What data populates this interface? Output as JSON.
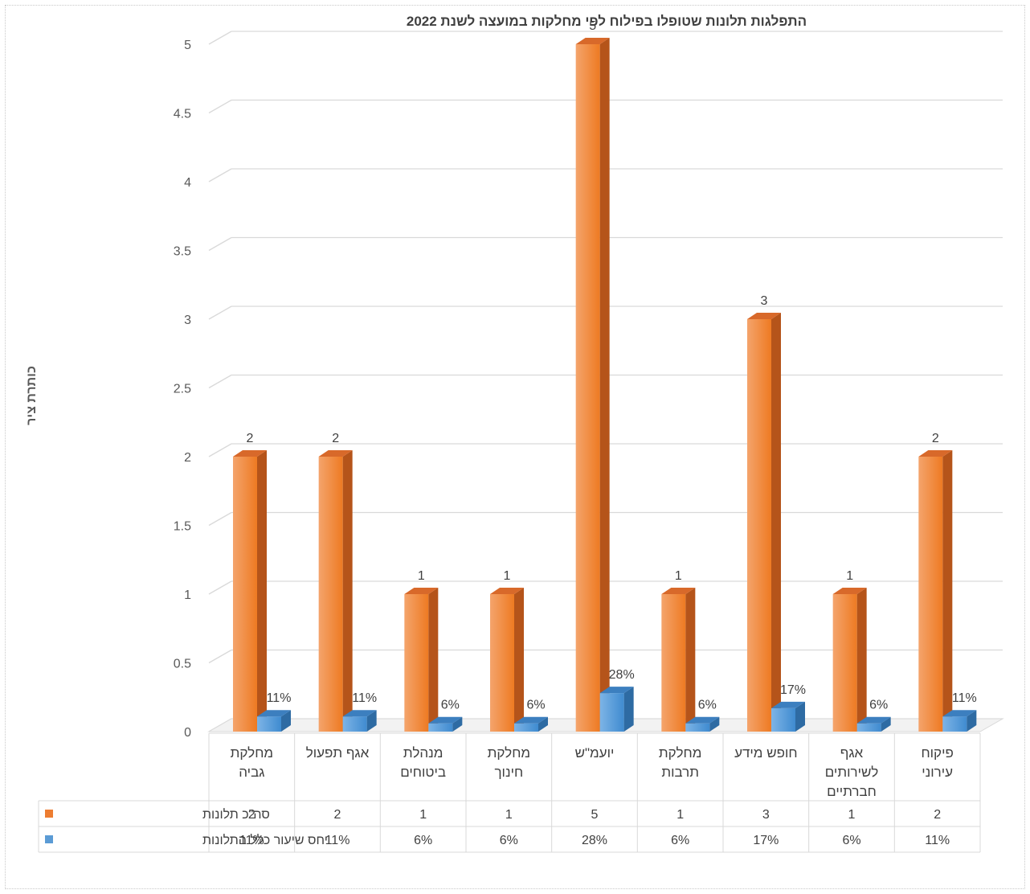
{
  "chart_data": {
    "type": "bar",
    "title": "התפלגות תלונות שטופלו בפילוח לפי מחלקות במועצה לשנת 2022",
    "ylabel": "כותרת ציר",
    "xlabel": "",
    "ylim": [
      0,
      5
    ],
    "yticks": [
      "0",
      "0.5",
      "1",
      "1.5",
      "2",
      "2.5",
      "3",
      "3.5",
      "4",
      "4.5",
      "5"
    ],
    "grid": true,
    "legend": "data-table",
    "categories": [
      [
        "מחלקת",
        "גביה"
      ],
      [
        "אגף תפעול"
      ],
      [
        "מנהלת",
        "ביטוחים"
      ],
      [
        "מחלקת",
        "חינוך"
      ],
      [
        "יועמ\"ש"
      ],
      [
        "מחלקת",
        "תרבות"
      ],
      [
        "חופש מידע"
      ],
      [
        "אגף",
        "לשירותים",
        "חברתיים"
      ],
      [
        "פיקוח",
        "עירוני"
      ]
    ],
    "series": [
      {
        "name": "סה\"כ תלונות",
        "color": "#ED7D31",
        "values": [
          2,
          2,
          1,
          1,
          5,
          1,
          3,
          1,
          2
        ],
        "labels": [
          "2",
          "2",
          "1",
          "1",
          "5",
          "1",
          "3",
          "1",
          "2"
        ]
      },
      {
        "name": "יחס שיעור כלל התלונות",
        "color": "#5B9BD5",
        "values": [
          0.11,
          0.11,
          0.06,
          0.06,
          0.28,
          0.06,
          0.17,
          0.06,
          0.11
        ],
        "labels": [
          "11%",
          "11%",
          "6%",
          "6%",
          "28%",
          "6%",
          "17%",
          "6%",
          "11%"
        ]
      }
    ]
  }
}
